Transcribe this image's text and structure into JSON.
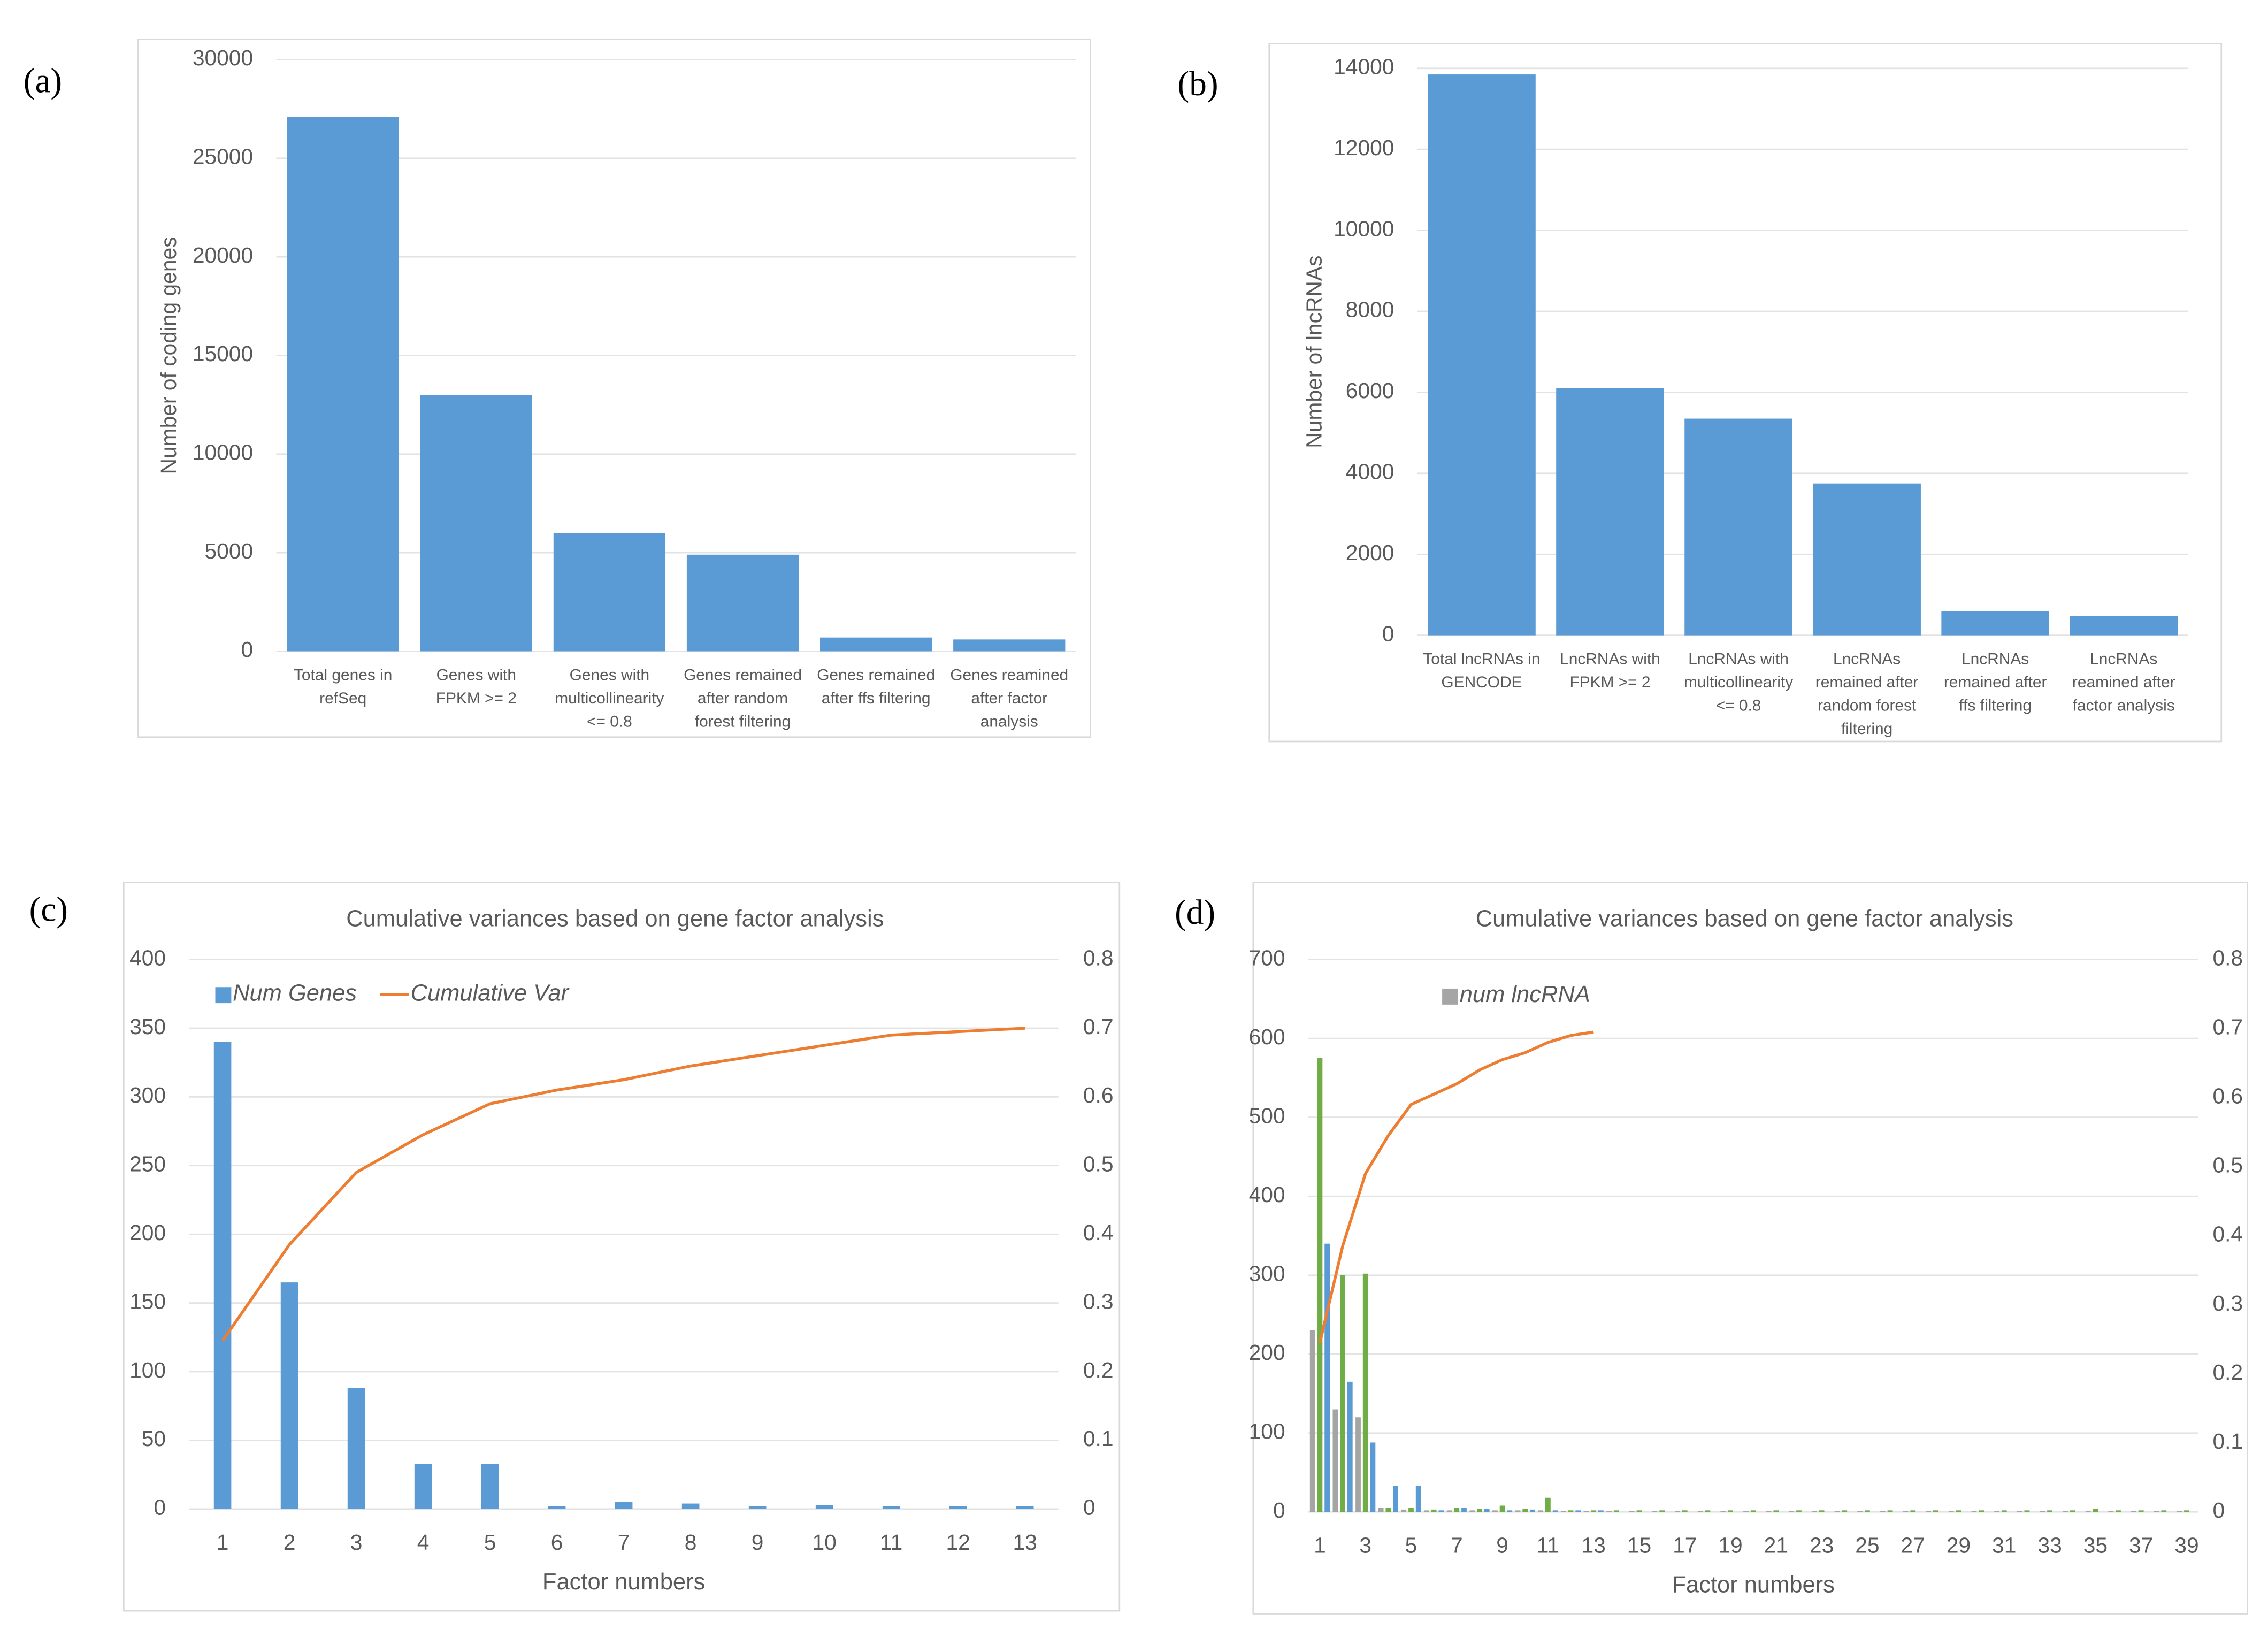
{
  "chart_data": [
    {
      "type": "bar",
      "panel": "(a)",
      "ylabel": "Number of coding genes",
      "color": "#5b9bd5",
      "categories": [
        [
          "Total genes in",
          "refSeq"
        ],
        [
          "Genes with",
          "FPKM >= 2"
        ],
        [
          "Genes with",
          "multicollinearity",
          "<= 0.8"
        ],
        [
          "Genes remained",
          "after random",
          "forest filtering"
        ],
        [
          "Genes remained",
          "after ffs filtering"
        ],
        [
          "Genes reamined",
          "after factor",
          "analysis"
        ]
      ],
      "values": [
        27100,
        13000,
        6000,
        4900,
        700,
        600
      ],
      "ylim": [
        0,
        30000
      ],
      "yticks": [
        0,
        5000,
        10000,
        15000,
        20000,
        25000,
        30000
      ],
      "grid": true
    },
    {
      "type": "bar",
      "panel": "(b)",
      "ylabel": "Number of lncRNAs",
      "color": "#5b9bd5",
      "categories": [
        [
          "Total lncRNAs in",
          "GENCODE"
        ],
        [
          "LncRNAs with",
          "FPKM >= 2"
        ],
        [
          "LncRNAs with",
          "multicollinearity",
          "<= 0.8"
        ],
        [
          "LncRNAs",
          "remained after",
          "random forest",
          "filtering"
        ],
        [
          "LncRNAs",
          "remained after",
          "ffs filtering"
        ],
        [
          "LncRNAs",
          "reamined after",
          "factor analysis"
        ]
      ],
      "values": [
        13850,
        6100,
        5350,
        3750,
        600,
        480
      ],
      "ylim": [
        0,
        14000
      ],
      "yticks": [
        0,
        2000,
        4000,
        6000,
        8000,
        10000,
        12000,
        14000
      ],
      "grid": true
    },
    {
      "type": "combo",
      "panel": "(c)",
      "title": "Cumulative variances based on gene factor analysis",
      "xlabel": "Factor numbers",
      "categories": [
        1,
        2,
        3,
        4,
        5,
        6,
        7,
        8,
        9,
        10,
        11,
        12,
        13
      ],
      "series": [
        {
          "name": "Num Genes",
          "type": "bar",
          "color": "#5b9bd5",
          "values": [
            340,
            165,
            88,
            33,
            33,
            2,
            5,
            4,
            2,
            3,
            2,
            2,
            2
          ]
        },
        {
          "name": "Cumulative Var",
          "type": "line",
          "color": "#ed7d31",
          "axis": "y2",
          "values": [
            0.245,
            0.385,
            0.49,
            0.545,
            0.59,
            0.61,
            0.625,
            0.645,
            0.66,
            0.675,
            0.69,
            0.695,
            0.7
          ]
        }
      ],
      "ylim": [
        0,
        400
      ],
      "yticks": [
        0,
        50,
        100,
        150,
        200,
        250,
        300,
        350,
        400
      ],
      "y2lim": [
        0,
        0.8
      ],
      "y2ticks": [
        0,
        0.1,
        0.2,
        0.3,
        0.4,
        0.5,
        0.6,
        0.7,
        0.8
      ],
      "grid": true,
      "legend": "top-left"
    },
    {
      "type": "combo",
      "panel": "(d)",
      "title": "Cumulative variances based on gene factor analysis",
      "xlabel": "Factor numbers",
      "categories": [
        1,
        null,
        3,
        null,
        5,
        null,
        7,
        null,
        9,
        null,
        11,
        null,
        13,
        null,
        15,
        null,
        17,
        null,
        19,
        null,
        21,
        null,
        23,
        null,
        25,
        null,
        27,
        null,
        29,
        null,
        31,
        null,
        33,
        null,
        35,
        null,
        37,
        null,
        39
      ],
      "series": [
        {
          "name": "num lncRNA",
          "type": "bar",
          "color": "#a5a5a5",
          "values": [
            230,
            130,
            120,
            5,
            3,
            2,
            2,
            2,
            2,
            2,
            2,
            1,
            1,
            1,
            1,
            1,
            1,
            1,
            1,
            1,
            1,
            1,
            1,
            1,
            1,
            1,
            1,
            1,
            1,
            1,
            1,
            1,
            1,
            1,
            1,
            1,
            1,
            1,
            1
          ]
        },
        {
          "type": "bar",
          "color": "#70ad47",
          "values": [
            575,
            300,
            302,
            5,
            5,
            3,
            5,
            4,
            8,
            4,
            18,
            2,
            2,
            2,
            2,
            2,
            2,
            2,
            2,
            2,
            2,
            2,
            2,
            2,
            2,
            2,
            2,
            2,
            2,
            2,
            2,
            2,
            2,
            2,
            4,
            2,
            2,
            2,
            2
          ]
        },
        {
          "type": "bar",
          "color": "#5b9bd5",
          "values": [
            340,
            165,
            88,
            33,
            33,
            2,
            5,
            4,
            2,
            3,
            2,
            2,
            2,
            0,
            0,
            0,
            0,
            0,
            0,
            0,
            0,
            0,
            0,
            0,
            0,
            0,
            0,
            0,
            0,
            0,
            0,
            0,
            0,
            0,
            0,
            0,
            0,
            0,
            0
          ]
        },
        {
          "type": "line",
          "color": "#ed7d31",
          "axis": "y2",
          "values": [
            0.245,
            0.385,
            0.49,
            0.545,
            0.59,
            0.605,
            0.62,
            0.64,
            0.655,
            0.665,
            0.68,
            0.69,
            0.695,
            null,
            null,
            null,
            null,
            null,
            null,
            null,
            null,
            null,
            null,
            null,
            null,
            null,
            null,
            null,
            null,
            null,
            null,
            null,
            null,
            null,
            null,
            null,
            null,
            null,
            null
          ]
        }
      ],
      "ylim": [
        0,
        700
      ],
      "yticks": [
        0,
        100,
        200,
        300,
        400,
        500,
        600,
        700
      ],
      "y2lim": [
        0,
        0.8
      ],
      "y2ticks": [
        0,
        0.1,
        0.2,
        0.3,
        0.4,
        0.5,
        0.6,
        0.7,
        0.8
      ],
      "grid": true,
      "legend": "top-left"
    }
  ]
}
